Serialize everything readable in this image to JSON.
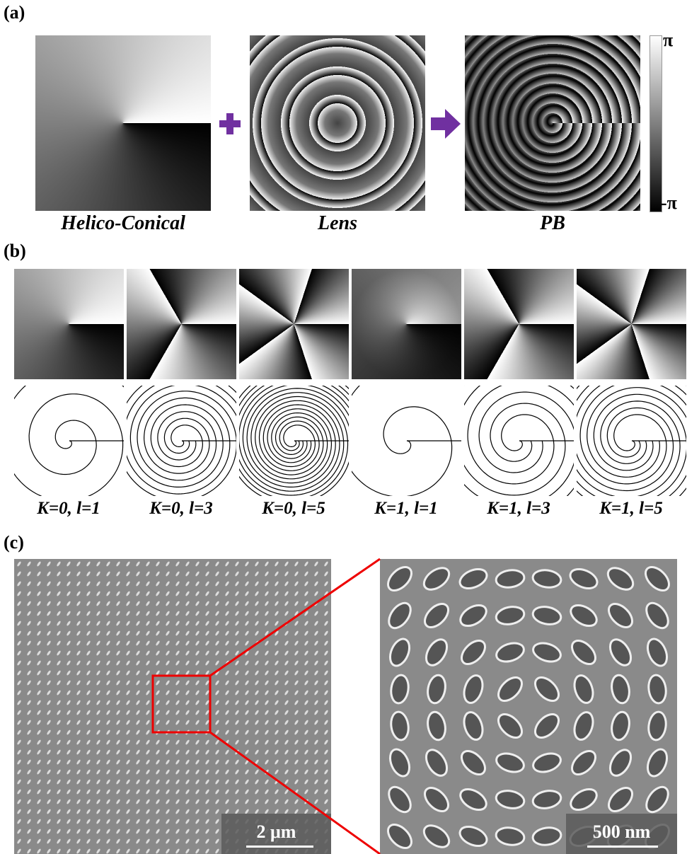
{
  "panel_a": {
    "label": "(a)",
    "images": [
      "Helico-Conical",
      "Lens",
      "PB"
    ],
    "colorbar": {
      "max": "π",
      "min": "-π"
    }
  },
  "panel_b": {
    "label": "(b)",
    "cases": [
      "K=0, l=1",
      "K=0, l=3",
      "K=0, l=5",
      "K=1, l=1",
      "K=1, l=3",
      "K=1, l=5"
    ]
  },
  "panel_c": {
    "label": "(c)",
    "scale_bars": [
      "2 μm",
      "500 nm"
    ]
  }
}
